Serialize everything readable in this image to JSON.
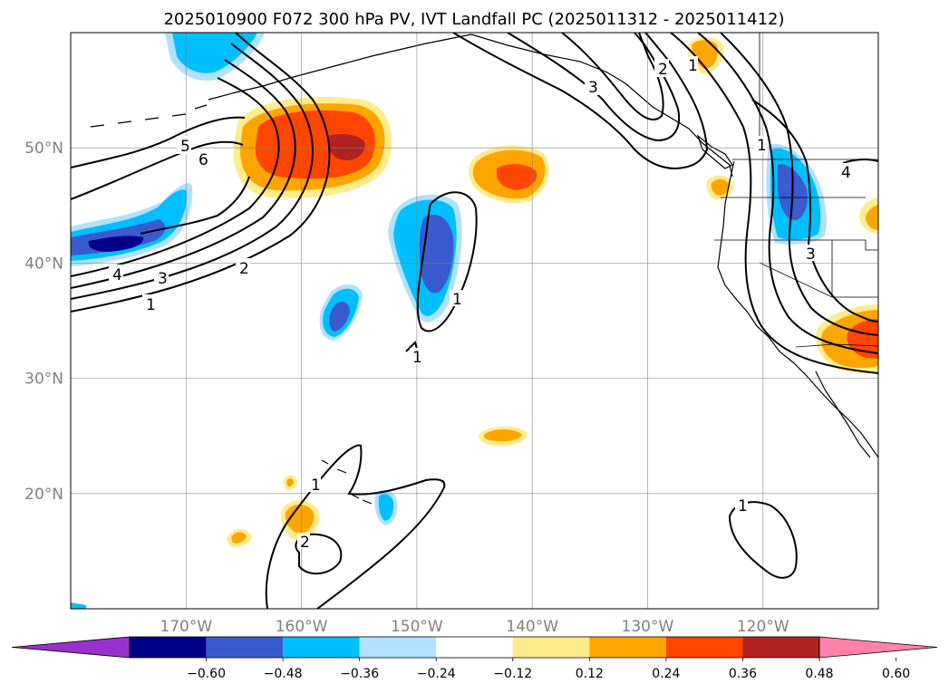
{
  "chart_data": {
    "type": "map-contour",
    "title": "2025010900 F072 300 hPa PV, IVT Landfall PC (2025011312 - 2025011412)",
    "x_range": [
      -180,
      -110
    ],
    "y_range": [
      10,
      60
    ],
    "lat_ticks": [
      {
        "value": 20,
        "label": "20°N"
      },
      {
        "value": 30,
        "label": "30°N"
      },
      {
        "value": 40,
        "label": "40°N"
      },
      {
        "value": 50,
        "label": "50°N"
      }
    ],
    "lon_ticks": [
      {
        "value": -170,
        "label": "170°W"
      },
      {
        "value": -160,
        "label": "160°W"
      },
      {
        "value": -150,
        "label": "150°W"
      },
      {
        "value": -140,
        "label": "140°W"
      },
      {
        "value": -130,
        "label": "130°W"
      },
      {
        "value": -120,
        "label": "120°W"
      }
    ],
    "grid": true,
    "colorbar": {
      "levels": [
        -0.6,
        -0.48,
        -0.36,
        -0.24,
        -0.12,
        0.12,
        0.24,
        0.36,
        0.48,
        0.6
      ],
      "tick_labels": [
        "−0.60",
        "−0.48",
        "−0.36",
        "−0.24",
        "−0.12",
        "0.12",
        "0.24",
        "0.36",
        "0.48",
        "0.60"
      ],
      "colors": [
        "#9932cc",
        "#00008b",
        "#3a5bd0",
        "#00bfff",
        "#b0e2ff",
        "#ffffff",
        "#ffec8b",
        "#ffa500",
        "#ff4500",
        "#b22222",
        "#ff82ab"
      ],
      "extend": "both"
    },
    "contour_labels": [
      "1",
      "2",
      "3",
      "4",
      "5",
      "6"
    ],
    "shaded_regions": [
      {
        "name": "north-pacific-positive",
        "lon": -153,
        "lat": 49.5,
        "value": 0.48
      },
      {
        "name": "west-negative",
        "lon": -174,
        "lat": 42,
        "value": -0.48
      },
      {
        "name": "aleutian-negative",
        "lon": -170,
        "lat": 58,
        "value": -0.36
      },
      {
        "name": "mid-pacific-negative",
        "lon": -148,
        "lat": 40,
        "value": -0.36
      },
      {
        "name": "small-negative",
        "lon": -157,
        "lat": 35,
        "value": -0.36
      },
      {
        "name": "gulf-alaska-positive",
        "lon": -142,
        "lat": 48,
        "value": 0.36
      },
      {
        "name": "pacific-northwest-negative",
        "lon": -117,
        "lat": 45,
        "value": -0.36
      },
      {
        "name": "california-positive",
        "lon": -111,
        "lat": 33.5,
        "value": 0.36
      },
      {
        "name": "subtropical-positive",
        "lon": -143,
        "lat": 25,
        "value": 0.24
      },
      {
        "name": "hawaii-positive",
        "lon": -160,
        "lat": 18,
        "value": 0.24
      },
      {
        "name": "hawaii-negative",
        "lon": -153,
        "lat": 19,
        "value": -0.24
      }
    ]
  }
}
